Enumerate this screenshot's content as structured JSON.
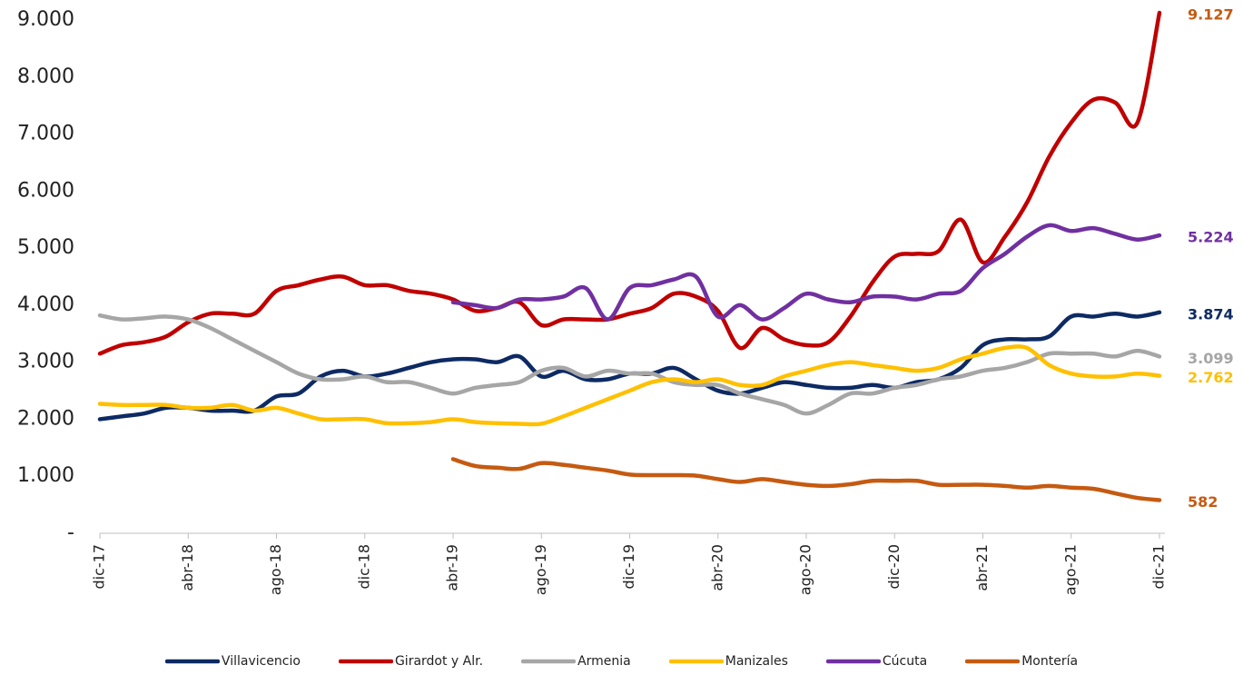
{
  "chart_data": {
    "type": "line",
    "categories": [
      "dic-17",
      null,
      null,
      null,
      "abr-18",
      null,
      null,
      null,
      "ago-18",
      null,
      null,
      null,
      "dic-18",
      null,
      null,
      null,
      "abr-19",
      null,
      null,
      null,
      "ago-19",
      null,
      null,
      null,
      "dic-19",
      null,
      null,
      null,
      "abr-20",
      null,
      null,
      null,
      "ago-20",
      null,
      null,
      null,
      "dic-20",
      null,
      null,
      null,
      "abr-21",
      null,
      null,
      null,
      "ago-21",
      null,
      null,
      null,
      "dic-21"
    ],
    "ylim": [
      0,
      9000
    ],
    "yticks": [
      {
        "value": 0,
        "label": "-"
      },
      {
        "value": 1000,
        "label": "1.000"
      },
      {
        "value": 2000,
        "label": "2.000"
      },
      {
        "value": 3000,
        "label": "3.000"
      },
      {
        "value": 4000,
        "label": "4.000"
      },
      {
        "value": 5000,
        "label": "5.000"
      },
      {
        "value": 6000,
        "label": "6.000"
      },
      {
        "value": 7000,
        "label": "7.000"
      },
      {
        "value": 8000,
        "label": "8.000"
      },
      {
        "value": 9000,
        "label": "9.000"
      }
    ],
    "grid": false,
    "legend": "bottom",
    "series": [
      {
        "name": "Villavicencio",
        "color": "#0d2a63",
        "label_color": "#0d2a63",
        "values": [
          2000,
          2050,
          2100,
          2200,
          2200,
          2150,
          2150,
          2150,
          2400,
          2450,
          2750,
          2850,
          2750,
          2800,
          2900,
          3000,
          3050,
          3050,
          3000,
          3100,
          2750,
          2850,
          2700,
          2700,
          2800,
          2800,
          2900,
          2700,
          2500,
          2450,
          2550,
          2650,
          2600,
          2550,
          2550,
          2600,
          2550,
          2650,
          2700,
          2900,
          3300,
          3400,
          3400,
          3450,
          3800,
          3800,
          3850,
          3800,
          3874
        ],
        "value_labels": [
          null,
          null,
          null,
          null,
          null,
          null,
          null,
          null,
          null,
          null,
          null,
          null,
          null,
          null,
          null,
          null,
          null,
          null,
          null,
          null,
          null,
          null,
          null,
          null,
          null,
          null,
          null,
          null,
          null,
          null,
          null,
          null,
          null,
          null,
          null,
          null,
          null,
          null,
          null,
          null,
          null,
          null,
          null,
          null,
          null,
          null,
          null,
          null,
          "3.874"
        ]
      },
      {
        "name": "Girardot y Alr.",
        "color": "#c00000",
        "label_color": "#c55a11",
        "values": [
          3150,
          3300,
          3350,
          3450,
          3700,
          3850,
          3850,
          3850,
          4250,
          4350,
          4450,
          4500,
          4350,
          4350,
          4250,
          4200,
          4100,
          3900,
          3950,
          4050,
          3650,
          3750,
          3750,
          3750,
          3850,
          3950,
          4200,
          4150,
          3900,
          3250,
          3600,
          3400,
          3300,
          3350,
          3800,
          4400,
          4850,
          4900,
          4950,
          5500,
          4750,
          5200,
          5800,
          6600,
          7200,
          7600,
          7550,
          7200,
          9127
        ],
        "value_labels": [
          null,
          null,
          null,
          null,
          null,
          null,
          null,
          null,
          null,
          null,
          null,
          null,
          null,
          null,
          null,
          null,
          null,
          null,
          null,
          null,
          null,
          null,
          null,
          null,
          null,
          null,
          null,
          null,
          null,
          null,
          null,
          null,
          null,
          null,
          null,
          null,
          null,
          null,
          null,
          null,
          null,
          null,
          null,
          null,
          null,
          null,
          null,
          null,
          "9.127"
        ]
      },
      {
        "name": "Armenia",
        "color": "#a6a6a6",
        "label_color": "#a6a6a6",
        "values": [
          3820,
          3750,
          3770,
          3800,
          3750,
          3600,
          3400,
          3200,
          3000,
          2800,
          2700,
          2700,
          2750,
          2650,
          2650,
          2550,
          2450,
          2550,
          2600,
          2650,
          2850,
          2900,
          2750,
          2850,
          2800,
          2800,
          2650,
          2600,
          2600,
          2450,
          2350,
          2250,
          2100,
          2250,
          2450,
          2450,
          2550,
          2600,
          2700,
          2750,
          2850,
          2900,
          3000,
          3150,
          3150,
          3150,
          3100,
          3200,
          3099
        ],
        "value_labels": [
          null,
          null,
          null,
          null,
          null,
          null,
          null,
          null,
          null,
          null,
          null,
          null,
          null,
          null,
          null,
          null,
          null,
          null,
          null,
          null,
          null,
          null,
          null,
          null,
          null,
          null,
          null,
          null,
          null,
          null,
          null,
          null,
          null,
          null,
          null,
          null,
          null,
          null,
          null,
          null,
          null,
          null,
          null,
          null,
          null,
          null,
          null,
          null,
          "3.099"
        ]
      },
      {
        "name": "Manizales",
        "color": "#ffc000",
        "label_color": "#ffc000",
        "values": [
          2270,
          2250,
          2250,
          2250,
          2200,
          2200,
          2250,
          2150,
          2200,
          2100,
          2000,
          2000,
          2000,
          1930,
          1930,
          1950,
          2000,
          1950,
          1930,
          1920,
          1920,
          2050,
          2200,
          2350,
          2500,
          2650,
          2700,
          2650,
          2700,
          2600,
          2600,
          2750,
          2850,
          2950,
          3000,
          2950,
          2900,
          2850,
          2900,
          3050,
          3150,
          3250,
          3250,
          2950,
          2800,
          2750,
          2750,
          2800,
          2762
        ],
        "value_labels": [
          null,
          null,
          null,
          null,
          null,
          null,
          null,
          null,
          null,
          null,
          null,
          null,
          null,
          null,
          null,
          null,
          null,
          null,
          null,
          null,
          null,
          null,
          null,
          null,
          null,
          null,
          null,
          null,
          null,
          null,
          null,
          null,
          null,
          null,
          null,
          null,
          null,
          null,
          null,
          null,
          null,
          null,
          null,
          null,
          null,
          null,
          null,
          null,
          "2.762"
        ]
      },
      {
        "name": "Cúcuta",
        "color": "#7030a0",
        "label_color": "#7030a0",
        "values": [
          null,
          null,
          null,
          null,
          null,
          null,
          null,
          null,
          null,
          null,
          null,
          null,
          null,
          null,
          null,
          null,
          4050,
          4000,
          3950,
          4100,
          4100,
          4150,
          4300,
          3750,
          4300,
          4350,
          4450,
          4500,
          3800,
          4000,
          3750,
          3950,
          4200,
          4100,
          4050,
          4150,
          4150,
          4100,
          4200,
          4250,
          4650,
          4900,
          5200,
          5400,
          5300,
          5350,
          5250,
          5150,
          5224
        ],
        "value_labels": [
          null,
          null,
          null,
          null,
          null,
          null,
          null,
          null,
          null,
          null,
          null,
          null,
          null,
          null,
          null,
          null,
          null,
          null,
          null,
          null,
          null,
          null,
          null,
          null,
          null,
          null,
          null,
          null,
          null,
          null,
          null,
          null,
          null,
          null,
          null,
          null,
          null,
          null,
          null,
          null,
          null,
          null,
          null,
          null,
          null,
          null,
          null,
          null,
          "5.224"
        ]
      },
      {
        "name": "Montería",
        "color": "#c55a11",
        "label_color": "#c55a11",
        "values": [
          null,
          null,
          null,
          null,
          null,
          null,
          null,
          null,
          null,
          null,
          null,
          null,
          null,
          null,
          null,
          null,
          1300,
          1180,
          1150,
          1130,
          1230,
          1200,
          1150,
          1100,
          1030,
          1020,
          1020,
          1010,
          950,
          900,
          950,
          900,
          850,
          830,
          860,
          920,
          920,
          920,
          850,
          850,
          850,
          830,
          800,
          830,
          800,
          780,
          700,
          620,
          582
        ],
        "value_labels": [
          null,
          null,
          null,
          null,
          null,
          null,
          null,
          null,
          null,
          null,
          null,
          null,
          null,
          null,
          null,
          null,
          null,
          null,
          null,
          null,
          null,
          null,
          null,
          null,
          null,
          null,
          null,
          null,
          null,
          null,
          null,
          null,
          null,
          null,
          null,
          null,
          null,
          null,
          null,
          null,
          null,
          null,
          null,
          null,
          null,
          null,
          null,
          null,
          "582"
        ]
      }
    ]
  }
}
